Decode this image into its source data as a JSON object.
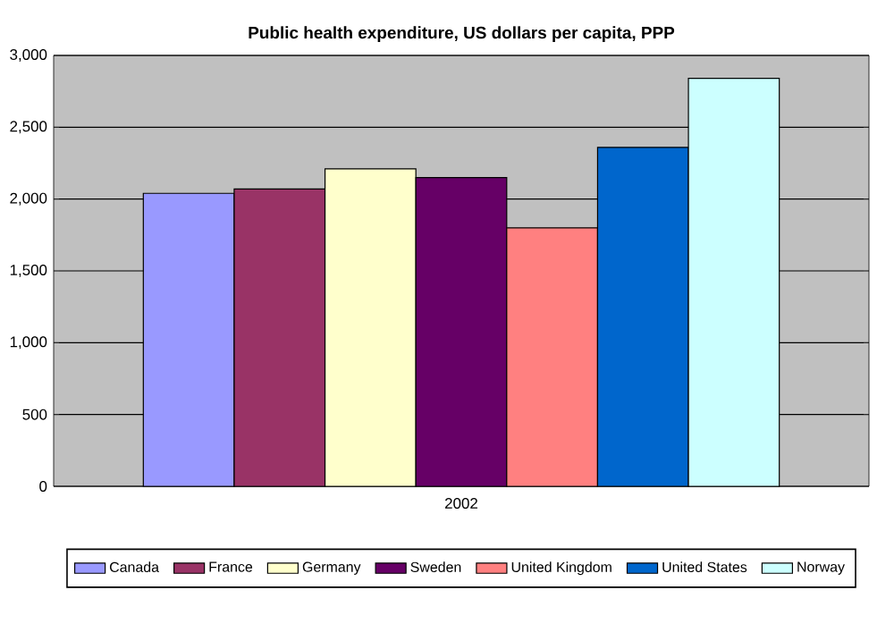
{
  "chart_data": {
    "type": "bar",
    "title": "Public health expenditure, US dollars per capita, PPP",
    "categories": [
      "2002"
    ],
    "series": [
      {
        "name": "Canada",
        "color": "#9999ff",
        "values": [
          2040
        ]
      },
      {
        "name": "France",
        "color": "#993366",
        "values": [
          2070
        ]
      },
      {
        "name": "Germany",
        "color": "#ffffcc",
        "values": [
          2210
        ]
      },
      {
        "name": "Sweden",
        "color": "#660066",
        "values": [
          2150
        ]
      },
      {
        "name": "United Kingdom",
        "color": "#ff8080",
        "values": [
          1800
        ]
      },
      {
        "name": "United States",
        "color": "#0066cc",
        "values": [
          2360
        ]
      },
      {
        "name": "Norway",
        "color": "#ccffff",
        "values": [
          2840
        ]
      }
    ],
    "ylim": [
      0,
      3000
    ],
    "yticks": [
      0,
      500,
      {
        "value": 1000,
        "label": "1,000"
      },
      {
        "value": 1500,
        "label": "1,500"
      },
      {
        "value": 2000,
        "label": "2,000"
      },
      {
        "value": 2500,
        "label": "2,500"
      },
      {
        "value": 3000,
        "label": "3,000"
      }
    ],
    "grid": "y",
    "legend": "bottom"
  }
}
